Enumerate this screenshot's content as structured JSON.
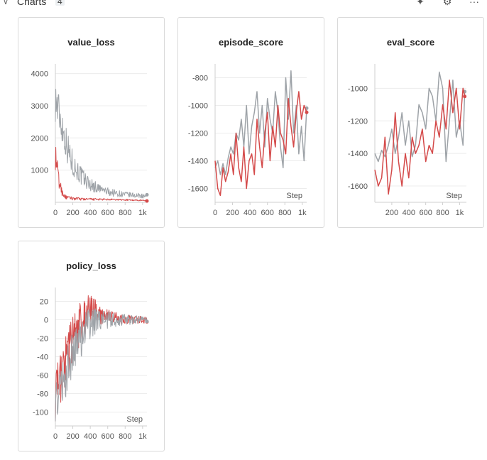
{
  "header": {
    "title": "Charts",
    "count": "4",
    "icons": [
      "pin-icon",
      "gear-icon",
      "more-icon"
    ]
  },
  "colors": {
    "red": "#d44a4a",
    "gray": "#9ea3a8",
    "grid": "#ececec"
  },
  "chart_data": [
    {
      "type": "line",
      "title": "value_loss",
      "xlabel": "",
      "ylabel": "",
      "xlim": [
        0,
        1050
      ],
      "ylim": [
        0,
        4300
      ],
      "xticks": [
        {
          "v": 0,
          "label": "0"
        },
        {
          "v": 200,
          "label": "200"
        },
        {
          "v": 400,
          "label": "400"
        },
        {
          "v": 600,
          "label": "600"
        },
        {
          "v": 800,
          "label": "800"
        },
        {
          "v": 1000,
          "label": "1k"
        }
      ],
      "yticks": [
        {
          "v": 1000,
          "label": "1000"
        },
        {
          "v": 2000,
          "label": "2000"
        },
        {
          "v": 3000,
          "label": "3000"
        },
        {
          "v": 4000,
          "label": "4000"
        }
      ],
      "series": [
        {
          "color": "gray",
          "noisy": true,
          "x": [
            0,
            20,
            50,
            100,
            150,
            200,
            300,
            400,
            500,
            600,
            700,
            800,
            900,
            1000,
            1050
          ],
          "y": [
            3200,
            3000,
            2700,
            2100,
            1600,
            1200,
            800,
            550,
            420,
            330,
            280,
            240,
            220,
            200,
            180
          ],
          "noise": [
            700,
            700,
            650,
            550,
            500,
            400,
            300,
            220,
            160,
            130,
            110,
            90,
            80,
            70,
            60
          ]
        },
        {
          "color": "red",
          "noisy": true,
          "x": [
            0,
            20,
            40,
            80,
            120,
            200,
            300,
            500,
            700,
            900,
            1050
          ],
          "y": [
            1400,
            1100,
            650,
            300,
            150,
            120,
            100,
            90,
            80,
            70,
            60
          ],
          "noise": [
            400,
            350,
            250,
            120,
            60,
            50,
            40,
            30,
            25,
            20,
            20
          ]
        }
      ]
    },
    {
      "type": "line",
      "title": "episode_score",
      "xlabel": "Step",
      "ylabel": "",
      "xlim": [
        0,
        1050
      ],
      "ylim": [
        -1700,
        -700
      ],
      "xticks": [
        {
          "v": 0,
          "label": "0"
        },
        {
          "v": 200,
          "label": "200"
        },
        {
          "v": 400,
          "label": "400"
        },
        {
          "v": 600,
          "label": "600"
        },
        {
          "v": 800,
          "label": "800"
        },
        {
          "v": 1000,
          "label": "1k"
        }
      ],
      "yticks": [
        {
          "v": -800,
          "label": "-800"
        },
        {
          "v": -1000,
          "label": "-1000"
        },
        {
          "v": -1200,
          "label": "-1200"
        },
        {
          "v": -1400,
          "label": "-1400"
        },
        {
          "v": -1600,
          "label": "-1600"
        }
      ],
      "series": [
        {
          "color": "gray",
          "x": [
            0,
            30,
            60,
            90,
            120,
            150,
            180,
            210,
            240,
            270,
            300,
            330,
            360,
            390,
            420,
            450,
            480,
            510,
            540,
            570,
            600,
            630,
            660,
            690,
            720,
            750,
            780,
            810,
            840,
            870,
            900,
            930,
            960,
            990,
            1020,
            1050
          ],
          "y": [
            -1450,
            -1400,
            -1500,
            -1420,
            -1500,
            -1380,
            -1300,
            -1350,
            -1200,
            -1250,
            -1100,
            -1300,
            -1000,
            -1350,
            -1150,
            -1050,
            -900,
            -1200,
            -1000,
            -1300,
            -950,
            -1100,
            -1200,
            -900,
            -1050,
            -1300,
            -1450,
            -800,
            -1100,
            -750,
            -1200,
            -1000,
            -1350,
            -1150,
            -1400,
            -1020
          ]
        },
        {
          "color": "red",
          "x": [
            0,
            30,
            60,
            90,
            120,
            150,
            180,
            210,
            240,
            270,
            300,
            330,
            360,
            390,
            420,
            450,
            480,
            510,
            540,
            570,
            600,
            630,
            660,
            690,
            720,
            750,
            780,
            810,
            840,
            870,
            900,
            930,
            960,
            990,
            1020,
            1050
          ],
          "y": [
            -1400,
            -1600,
            -1650,
            -1450,
            -1550,
            -1480,
            -1350,
            -1500,
            -1200,
            -1450,
            -1550,
            -1300,
            -1600,
            -1400,
            -1350,
            -1500,
            -1100,
            -1300,
            -1450,
            -1200,
            -1050,
            -1400,
            -1150,
            -1300,
            -1000,
            -1200,
            -1250,
            -1350,
            -950,
            -1150,
            -1300,
            -1050,
            -900,
            -1100,
            -1000,
            -1050
          ]
        }
      ]
    },
    {
      "type": "line",
      "title": "eval_score",
      "xlabel": "Step",
      "ylabel": "",
      "xlim": [
        0,
        1080
      ],
      "ylim": [
        -1700,
        -850
      ],
      "xticks": [
        {
          "v": 200,
          "label": "200"
        },
        {
          "v": 400,
          "label": "400"
        },
        {
          "v": 600,
          "label": "600"
        },
        {
          "v": 800,
          "label": "800"
        },
        {
          "v": 1000,
          "label": "1k"
        }
      ],
      "yticks": [
        {
          "v": -1000,
          "label": "-1000"
        },
        {
          "v": -1200,
          "label": "-1200"
        },
        {
          "v": -1400,
          "label": "-1400"
        },
        {
          "v": -1600,
          "label": "-1600"
        }
      ],
      "series": [
        {
          "color": "gray",
          "x": [
            0,
            40,
            80,
            120,
            160,
            200,
            240,
            280,
            320,
            360,
            400,
            440,
            480,
            520,
            560,
            600,
            640,
            680,
            720,
            760,
            800,
            840,
            880,
            920,
            960,
            1000,
            1040,
            1060
          ],
          "y": [
            -1400,
            -1450,
            -1380,
            -1420,
            -1350,
            -1250,
            -1400,
            -1300,
            -1150,
            -1350,
            -1200,
            -1420,
            -1350,
            -1100,
            -1150,
            -1250,
            -1000,
            -1050,
            -1200,
            -900,
            -1000,
            -1450,
            -1200,
            -950,
            -1300,
            -1200,
            -1350,
            -1020
          ]
        },
        {
          "color": "red",
          "x": [
            0,
            40,
            80,
            120,
            160,
            200,
            240,
            280,
            320,
            360,
            400,
            440,
            480,
            520,
            560,
            600,
            640,
            680,
            720,
            760,
            800,
            840,
            880,
            920,
            960,
            1000,
            1040,
            1060
          ],
          "y": [
            -1500,
            -1600,
            -1550,
            -1300,
            -1650,
            -1500,
            -1150,
            -1450,
            -1600,
            -1400,
            -1550,
            -1300,
            -1400,
            -1350,
            -1250,
            -1450,
            -1350,
            -1400,
            -1200,
            -1300,
            -1100,
            -1250,
            -950,
            -1150,
            -1000,
            -1250,
            -1000,
            -1050
          ]
        }
      ]
    },
    {
      "type": "line",
      "title": "policy_loss",
      "xlabel": "Step",
      "ylabel": "",
      "xlim": [
        0,
        1050
      ],
      "ylim": [
        -115,
        35
      ],
      "xticks": [
        {
          "v": 0,
          "label": "0"
        },
        {
          "v": 200,
          "label": "200"
        },
        {
          "v": 400,
          "label": "400"
        },
        {
          "v": 600,
          "label": "600"
        },
        {
          "v": 800,
          "label": "800"
        },
        {
          "v": 1000,
          "label": "1k"
        }
      ],
      "yticks": [
        {
          "v": 20,
          "label": "20"
        },
        {
          "v": 0,
          "label": "0"
        },
        {
          "v": -20,
          "label": "-20"
        },
        {
          "v": -40,
          "label": "-40"
        },
        {
          "v": -60,
          "label": "-60"
        },
        {
          "v": -80,
          "label": "-80"
        },
        {
          "v": -100,
          "label": "-100"
        }
      ],
      "series": [
        {
          "color": "red",
          "noisy": true,
          "x": [
            0,
            50,
            100,
            150,
            200,
            250,
            300,
            350,
            400,
            450,
            500,
            600,
            700,
            800,
            900,
            1000,
            1050
          ],
          "y": [
            -80,
            -70,
            -55,
            -35,
            -20,
            -10,
            0,
            5,
            10,
            8,
            5,
            3,
            2,
            1,
            0,
            0,
            0
          ],
          "noise": [
            30,
            30,
            30,
            30,
            25,
            25,
            22,
            20,
            18,
            15,
            12,
            8,
            6,
            5,
            4,
            4,
            3
          ]
        },
        {
          "color": "gray",
          "noisy": true,
          "x": [
            0,
            50,
            100,
            150,
            200,
            250,
            300,
            350,
            400,
            450,
            500,
            600,
            700,
            800,
            900,
            1000,
            1050
          ],
          "y": [
            -90,
            -80,
            -65,
            -50,
            -35,
            -25,
            -18,
            -10,
            -5,
            -2,
            0,
            0,
            0,
            0,
            0,
            0,
            0
          ],
          "noise": [
            20,
            22,
            25,
            25,
            25,
            25,
            22,
            20,
            18,
            15,
            12,
            10,
            8,
            6,
            5,
            4,
            3
          ]
        }
      ]
    }
  ]
}
